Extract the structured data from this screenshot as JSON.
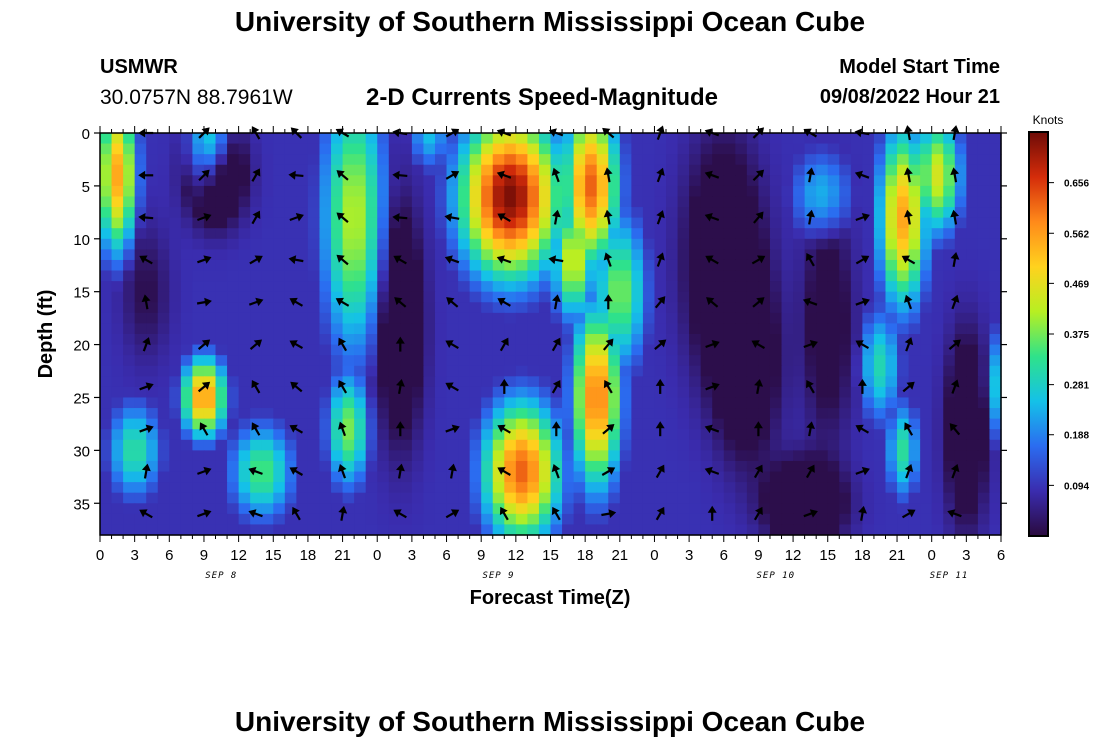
{
  "header": {
    "title": "University of Southern Mississippi Ocean Cube",
    "station_name": "USMWR",
    "station_coords": "30.0757N  88.7961W",
    "subtitle": "2-D Currents Speed-Magnitude",
    "model_start_label": "Model Start Time",
    "model_start_value": "09/08/2022 Hour 21"
  },
  "footer": {
    "title": "University of Southern Mississippi Ocean Cube"
  },
  "chart_data": {
    "type": "heatmap",
    "title": "2-D Currents Speed-Magnitude",
    "xlabel": "Forecast Time(Z)",
    "ylabel": "Depth (ft)",
    "x_range_hours": [
      0,
      78
    ],
    "y_range_ft": [
      0,
      38
    ],
    "x_tick_labels": [
      "0",
      "3",
      "6",
      "9",
      "12",
      "15",
      "18",
      "21",
      "0",
      "3",
      "6",
      "9",
      "12",
      "15",
      "18",
      "21",
      "0",
      "3",
      "6",
      "9",
      "12",
      "15",
      "18",
      "21",
      "0",
      "3",
      "6"
    ],
    "y_ticks": [
      0,
      5,
      10,
      15,
      20,
      25,
      30,
      35
    ],
    "date_labels": [
      {
        "text": "SEP 8",
        "hour": 10.5
      },
      {
        "text": "SEP 9",
        "hour": 34.5
      },
      {
        "text": "SEP 10",
        "hour": 58.5
      },
      {
        "text": "SEP 11",
        "hour": 73.5
      }
    ],
    "colorbar": {
      "label": "Knots",
      "min": 0.0,
      "max": 0.75,
      "tick_values": [
        0.656,
        0.562,
        0.469,
        0.375,
        0.281,
        0.188,
        0.094
      ],
      "tick_labels": [
        "0.656",
        "0.562",
        "0.469",
        "0.375",
        "0.281",
        "0.188",
        "0.094"
      ],
      "colors": [
        "#2a0a3e",
        "#3a2cae",
        "#2b6cf0",
        "#14c1e8",
        "#2fe28a",
        "#b7ef22",
        "#ffd21e",
        "#ff8a1a",
        "#d42c0a",
        "#6e0b07"
      ]
    },
    "speed_centers": [
      {
        "t": 1.5,
        "d": 4,
        "v": 0.55,
        "st": 1.8,
        "sd": 8
      },
      {
        "t": 9,
        "d": 25,
        "v": 0.58,
        "st": 2,
        "sd": 4
      },
      {
        "t": 9.5,
        "d": 2,
        "v": 0.42,
        "st": 2,
        "sd": 5
      },
      {
        "t": 3,
        "d": 30,
        "v": 0.32,
        "st": 2.5,
        "sd": 5
      },
      {
        "t": 14,
        "d": 32,
        "v": 0.35,
        "st": 3,
        "sd": 5
      },
      {
        "t": 22,
        "d": 8,
        "v": 0.42,
        "st": 3,
        "sd": 14
      },
      {
        "t": 21.5,
        "d": 28,
        "v": 0.38,
        "st": 2,
        "sd": 6
      },
      {
        "t": 28.5,
        "d": 0,
        "v": 0.25,
        "st": 2,
        "sd": 4
      },
      {
        "t": 35.5,
        "d": 6,
        "v": 0.74,
        "st": 4.5,
        "sd": 8
      },
      {
        "t": 42.5,
        "d": 5,
        "v": 0.62,
        "st": 2.5,
        "sd": 8
      },
      {
        "t": 36.5,
        "d": 32,
        "v": 0.62,
        "st": 3.5,
        "sd": 7
      },
      {
        "t": 43,
        "d": 25,
        "v": 0.6,
        "st": 2.2,
        "sd": 9
      },
      {
        "t": 41,
        "d": 12,
        "v": 0.45,
        "st": 2,
        "sd": 6
      },
      {
        "t": 45,
        "d": 15,
        "v": 0.38,
        "st": 2.5,
        "sd": 8
      },
      {
        "t": 56,
        "d": 22,
        "v": 0.18,
        "st": 2.5,
        "sd": 8
      },
      {
        "t": 62.5,
        "d": 6,
        "v": 0.26,
        "st": 3,
        "sd": 5
      },
      {
        "t": 67.5,
        "d": 22,
        "v": 0.3,
        "st": 2,
        "sd": 6
      },
      {
        "t": 69.5,
        "d": 8,
        "v": 0.55,
        "st": 2.2,
        "sd": 9
      },
      {
        "t": 72.5,
        "d": 4,
        "v": 0.45,
        "st": 2.2,
        "sd": 6
      },
      {
        "t": 69.5,
        "d": 30,
        "v": 0.32,
        "st": 1.5,
        "sd": 5
      },
      {
        "t": 78,
        "d": 24,
        "v": 0.3,
        "st": 1.5,
        "sd": 6
      }
    ],
    "low_centers": [
      {
        "t": 10,
        "d": 4,
        "v": 0.3,
        "st": 2.2,
        "sd": 4
      },
      {
        "t": 26,
        "d": 18,
        "v": 0.22,
        "st": 1.8,
        "sd": 10
      },
      {
        "t": 54,
        "d": 12,
        "v": 0.22,
        "st": 3,
        "sd": 10
      },
      {
        "t": 56,
        "d": 22,
        "v": 0.2,
        "st": 2.5,
        "sd": 8
      },
      {
        "t": 61,
        "d": 35,
        "v": 0.28,
        "st": 3,
        "sd": 3.5
      },
      {
        "t": 63,
        "d": 18,
        "v": 0.14,
        "st": 2,
        "sd": 10
      },
      {
        "t": 75,
        "d": 28,
        "v": 0.22,
        "st": 1.6,
        "sd": 8
      },
      {
        "t": 4,
        "d": 15,
        "v": 0.08,
        "st": 2,
        "sd": 6
      }
    ],
    "vector_rows_ft": [
      0,
      4,
      8,
      12,
      16,
      20,
      24,
      28,
      32,
      36
    ],
    "vector_cols_hours": [
      4,
      9,
      13.5,
      17,
      21,
      26,
      30.5,
      35,
      39.5,
      44,
      48.5,
      53,
      57,
      61.5,
      66,
      70,
      74
    ],
    "vector_angles_deg": [
      [
        180,
        45,
        120,
        135,
        150,
        170,
        30,
        160,
        160,
        140,
        70,
        160,
        45,
        150,
        170,
        100,
        80
      ],
      [
        180,
        45,
        60,
        175,
        140,
        175,
        30,
        160,
        110,
        100,
        70,
        160,
        45,
        80,
        160,
        100,
        100
      ],
      [
        175,
        20,
        60,
        20,
        140,
        175,
        170,
        150,
        80,
        100,
        70,
        160,
        50,
        80,
        20,
        100,
        100
      ],
      [
        150,
        20,
        30,
        170,
        140,
        150,
        160,
        160,
        170,
        110,
        70,
        150,
        30,
        120,
        30,
        150,
        80
      ],
      [
        100,
        10,
        20,
        150,
        150,
        140,
        140,
        150,
        80,
        90,
        50,
        140,
        40,
        160,
        20,
        110,
        70
      ],
      [
        70,
        40,
        40,
        150,
        120,
        90,
        150,
        60,
        60,
        50,
        40,
        20,
        150,
        20,
        150,
        70,
        40
      ],
      [
        20,
        40,
        120,
        140,
        120,
        80,
        150,
        90,
        60,
        120,
        90,
        20,
        80,
        120,
        90,
        40,
        70
      ],
      [
        20,
        120,
        120,
        150,
        110,
        90,
        20,
        150,
        90,
        40,
        90,
        160,
        90,
        80,
        150,
        120,
        130
      ],
      [
        80,
        20,
        160,
        150,
        110,
        80,
        80,
        150,
        110,
        30,
        60,
        160,
        60,
        60,
        20,
        70,
        70
      ],
      [
        150,
        20,
        160,
        120,
        80,
        150,
        30,
        120,
        120,
        10,
        60,
        90,
        60,
        20,
        80,
        30,
        160
      ]
    ]
  }
}
